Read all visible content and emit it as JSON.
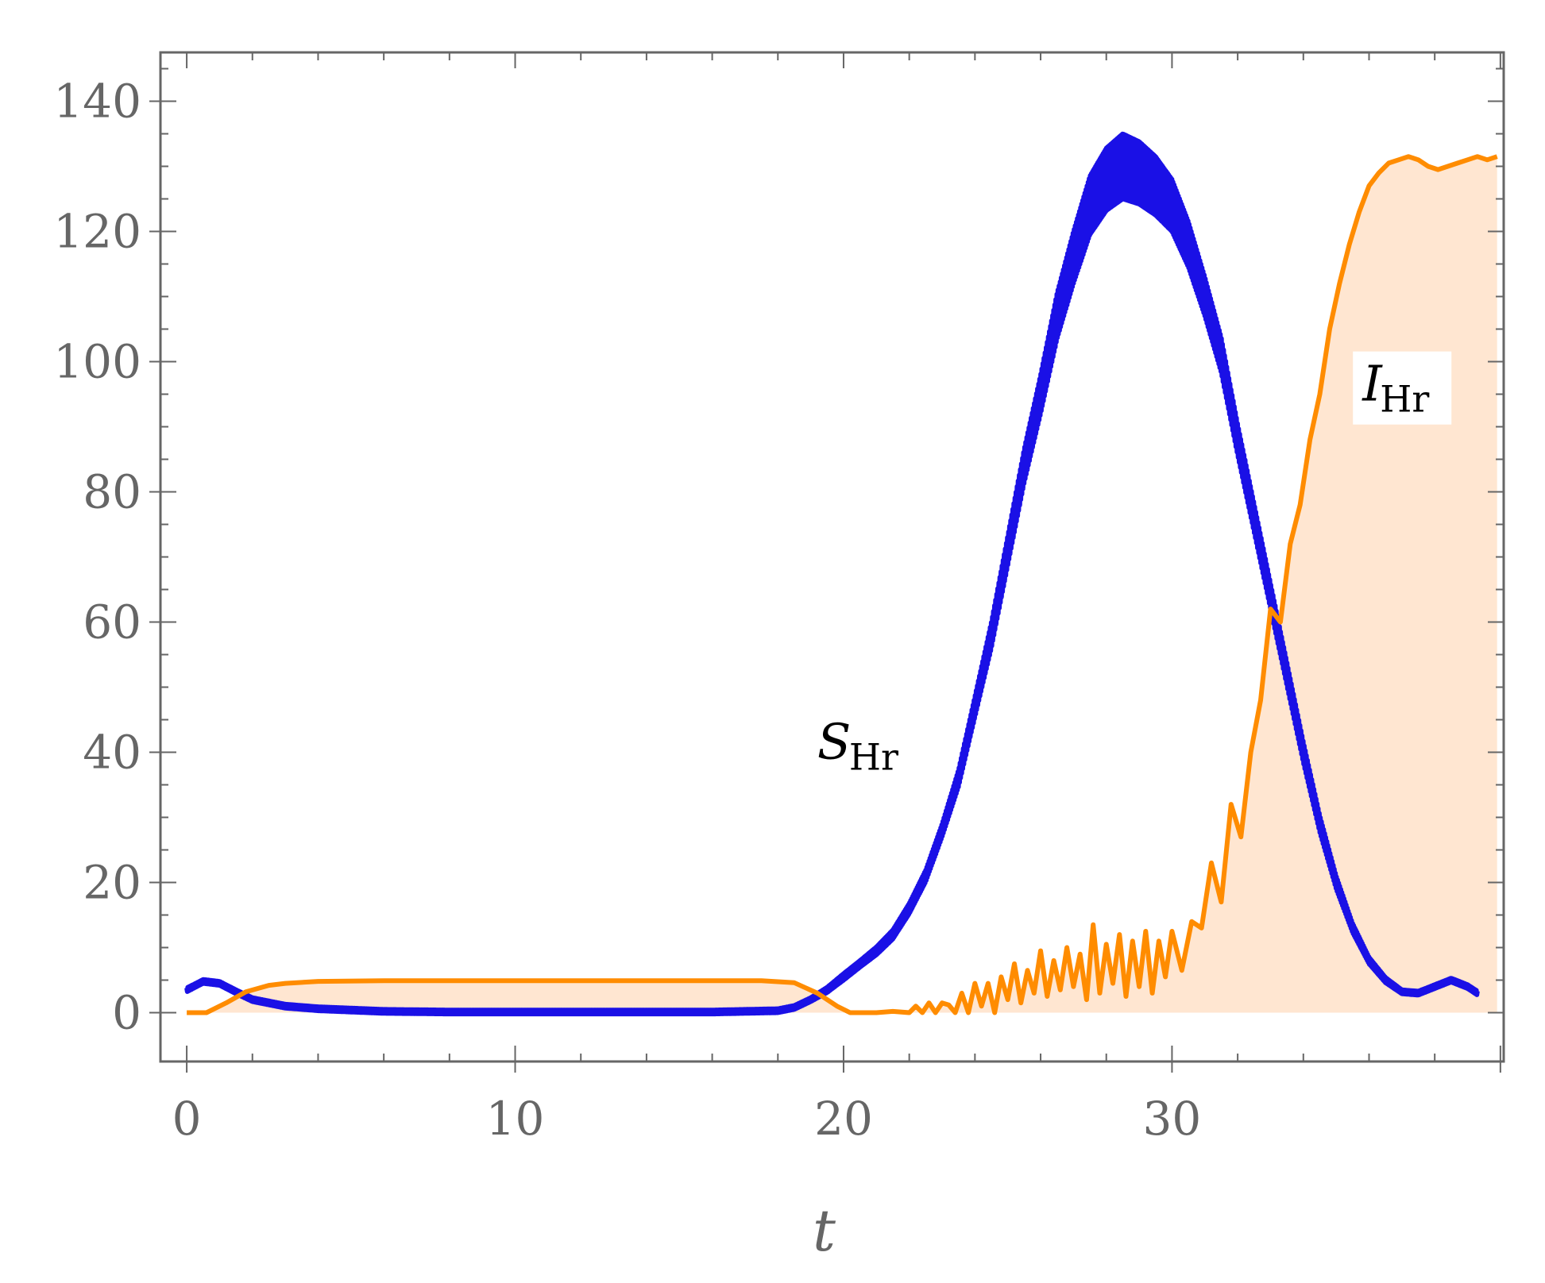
{
  "chart_data": {
    "type": "line",
    "xlabel": "t",
    "ylabel": "",
    "xlim": [
      -0.8,
      40.1
    ],
    "ylim": [
      -7.5,
      147.5
    ],
    "x_ticks": [
      0,
      10,
      20,
      30
    ],
    "y_ticks": [
      0,
      20,
      40,
      60,
      80,
      100,
      120,
      140
    ],
    "grid": false,
    "legend": "none",
    "colors": {
      "s_hr": "#1a10e6",
      "i_hr": "#ff8c00",
      "i_hr_fill": "#ffe6d1",
      "frame": "#666666"
    },
    "annotations": [
      {
        "text": "S",
        "sub": "Hr",
        "x": 19.2,
        "y": 39
      },
      {
        "text": "I",
        "sub": "Hr",
        "x": 35.8,
        "y": 94
      }
    ],
    "series": [
      {
        "name": "S_Hr",
        "x": [
          0,
          0.5,
          1,
          1.5,
          2,
          3,
          4,
          6,
          8,
          10,
          12,
          14,
          16,
          18,
          18.5,
          19,
          19.5,
          20,
          20.5,
          21,
          21.5,
          22,
          22.5,
          23,
          23.5,
          24,
          24.5,
          25,
          25.5,
          26,
          26.5,
          27,
          27.5,
          28,
          28.5,
          29,
          29.5,
          30,
          30.5,
          31,
          31.5,
          32,
          32.5,
          33,
          33.5,
          34,
          34.5,
          35,
          35.5,
          36,
          36.5,
          37,
          37.5,
          38,
          38.5,
          39,
          39.3
        ],
        "y": [
          3.5,
          4.8,
          4.5,
          3.2,
          2.0,
          1.0,
          0.6,
          0.2,
          0.1,
          0.1,
          0.1,
          0.1,
          0.1,
          0.3,
          0.8,
          2.0,
          3.5,
          5.5,
          7.5,
          9.5,
          12.0,
          16.0,
          21.0,
          28.0,
          36.0,
          47.0,
          58.0,
          71.0,
          84.0,
          95.0,
          107.0,
          116.0,
          124.0,
          128.0,
          130.0,
          129.0,
          127.0,
          124.0,
          118.0,
          110.0,
          101.0,
          88.0,
          76.0,
          64.0,
          52.0,
          40.0,
          29.0,
          20.0,
          13.0,
          8.0,
          5.0,
          3.2,
          3.0,
          4.0,
          5.0,
          4.0,
          3.0
        ],
        "oscillation_amplitude": [
          0.3,
          0.3,
          0.3,
          0.3,
          0.3,
          0.3,
          0.3,
          0.3,
          0.3,
          0.3,
          0.3,
          0.3,
          0.3,
          0.3,
          0.3,
          0.3,
          0.4,
          0.5,
          0.5,
          0.6,
          0.7,
          0.8,
          0.9,
          1.0,
          1.3,
          1.6,
          2.0,
          2.3,
          2.6,
          3.0,
          3.5,
          4.0,
          4.5,
          4.8,
          5.0,
          4.8,
          4.5,
          4.0,
          3.5,
          3.0,
          2.7,
          2.4,
          2.2,
          2.0,
          1.8,
          1.6,
          1.3,
          1.0,
          0.7,
          0.5,
          0.4,
          0.3,
          0.3,
          0.3,
          0.3,
          0.3,
          0.3
        ]
      },
      {
        "name": "I_Hr",
        "x": [
          0,
          0.6,
          1.2,
          1.8,
          2.5,
          3,
          4,
          6,
          8,
          10,
          12,
          14,
          16,
          17.5,
          18.5,
          19.2,
          19.8,
          20.2,
          20.5,
          21,
          21.5,
          22,
          22.2,
          22.4,
          22.6,
          22.8,
          23.0,
          23.2,
          23.4,
          23.6,
          23.8,
          24.0,
          24.2,
          24.4,
          24.6,
          24.8,
          25.0,
          25.2,
          25.4,
          25.6,
          25.8,
          26.0,
          26.2,
          26.4,
          26.6,
          26.8,
          27.0,
          27.2,
          27.4,
          27.6,
          27.8,
          28.0,
          28.2,
          28.4,
          28.6,
          28.8,
          29.0,
          29.2,
          29.4,
          29.6,
          29.8,
          30.0,
          30.3,
          30.6,
          30.9,
          31.2,
          31.5,
          31.8,
          32.1,
          32.4,
          32.7,
          33.0,
          33.3,
          33.6,
          33.9,
          34.2,
          34.5,
          34.8,
          35.1,
          35.4,
          35.7,
          36.0,
          36.3,
          36.6,
          36.9,
          37.2,
          37.5,
          37.8,
          38.1,
          38.4,
          38.7,
          39.0,
          39.3,
          39.6,
          39.9
        ],
        "y": [
          0,
          0,
          1.5,
          3.2,
          4.2,
          4.5,
          4.8,
          4.9,
          4.9,
          4.9,
          4.9,
          4.9,
          4.9,
          4.9,
          4.6,
          3.0,
          1.0,
          0,
          0,
          0,
          0.2,
          0,
          1.0,
          0,
          1.5,
          0,
          1.5,
          1.2,
          0,
          3.0,
          0,
          4.5,
          1.0,
          4.5,
          0,
          5.5,
          2.0,
          7.5,
          1.5,
          6.5,
          3.0,
          9.5,
          2.5,
          8.0,
          3.5,
          10.0,
          4.0,
          9.0,
          2.0,
          13.5,
          3.0,
          10.5,
          4.5,
          12.0,
          2.5,
          11.0,
          4.0,
          12.5,
          3.0,
          11.0,
          5.5,
          12.5,
          6.5,
          14.0,
          13.0,
          23.0,
          17.0,
          32.0,
          27.0,
          40.0,
          48.0,
          62.0,
          60.0,
          72.0,
          78.0,
          88.0,
          95.0,
          105.0,
          112.0,
          118.0,
          123.0,
          127.0,
          129.0,
          130.5,
          131.0,
          131.5,
          131.0,
          130.0,
          129.5,
          130.0,
          130.5,
          131.0,
          131.5,
          131.0,
          131.5
        ]
      }
    ]
  }
}
